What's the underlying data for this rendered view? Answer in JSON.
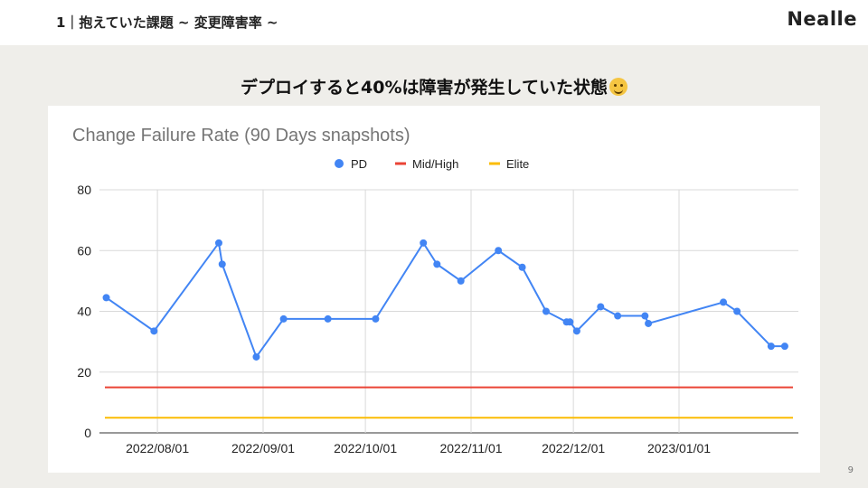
{
  "slide": {
    "header_title": "1｜抱えていた課題 ~ 変更障害率 ~",
    "brand": "Nealle",
    "headline": "デプロイすると40%は障害が発生していた状態",
    "emoji_name": "face-holding-back-tears-icon",
    "page_number": "9"
  },
  "colors": {
    "pd": "#4285f4",
    "midhigh": "#ea4335",
    "elite": "#fbbc04",
    "grid": "#d9d9d9",
    "axis_text": "#222222",
    "title_text": "#757575"
  },
  "chart_data": {
    "type": "line",
    "title": "Change Failure Rate (90 Days snapshots)",
    "xlabel": "",
    "ylabel": "",
    "ylim": [
      0,
      80
    ],
    "yticks": [
      0,
      20,
      40,
      60,
      80
    ],
    "xlim": [
      "2022-07-15",
      "2023-02-05"
    ],
    "xticks": [
      "2022-08-01",
      "2022-09-01",
      "2022-10-01",
      "2022-11-01",
      "2022-12-01",
      "2023-01-01"
    ],
    "xtick_labels": [
      "2022/08/01",
      "2022/09/01",
      "2022/10/01",
      "2022/11/01",
      "2022/12/01",
      "2023/01/01"
    ],
    "legend_position": "top",
    "grid": true,
    "series": [
      {
        "name": "PD",
        "kind": "line-with-markers",
        "color": "#4285f4",
        "x": [
          "2022-07-17",
          "2022-07-31",
          "2022-08-19",
          "2022-08-20",
          "2022-08-30",
          "2022-09-07",
          "2022-09-20",
          "2022-10-04",
          "2022-10-18",
          "2022-10-22",
          "2022-10-29",
          "2022-11-09",
          "2022-11-16",
          "2022-11-23",
          "2022-11-29",
          "2022-11-30",
          "2022-12-02",
          "2022-12-09",
          "2022-12-14",
          "2022-12-22",
          "2022-12-23",
          "2023-01-14",
          "2023-01-18",
          "2023-01-28",
          "2023-02-01"
        ],
        "values": [
          44.5,
          33.5,
          62.5,
          55.5,
          25.0,
          37.5,
          37.5,
          37.5,
          62.5,
          55.5,
          50.0,
          60.0,
          54.5,
          40.0,
          36.5,
          36.5,
          33.5,
          41.5,
          38.5,
          38.5,
          36.0,
          43.0,
          40.0,
          28.5,
          28.5
        ]
      },
      {
        "name": "Mid/High",
        "kind": "reference-line",
        "color": "#ea4335",
        "value": 15
      },
      {
        "name": "Elite",
        "kind": "reference-line",
        "color": "#fbbc04",
        "value": 5
      }
    ]
  }
}
